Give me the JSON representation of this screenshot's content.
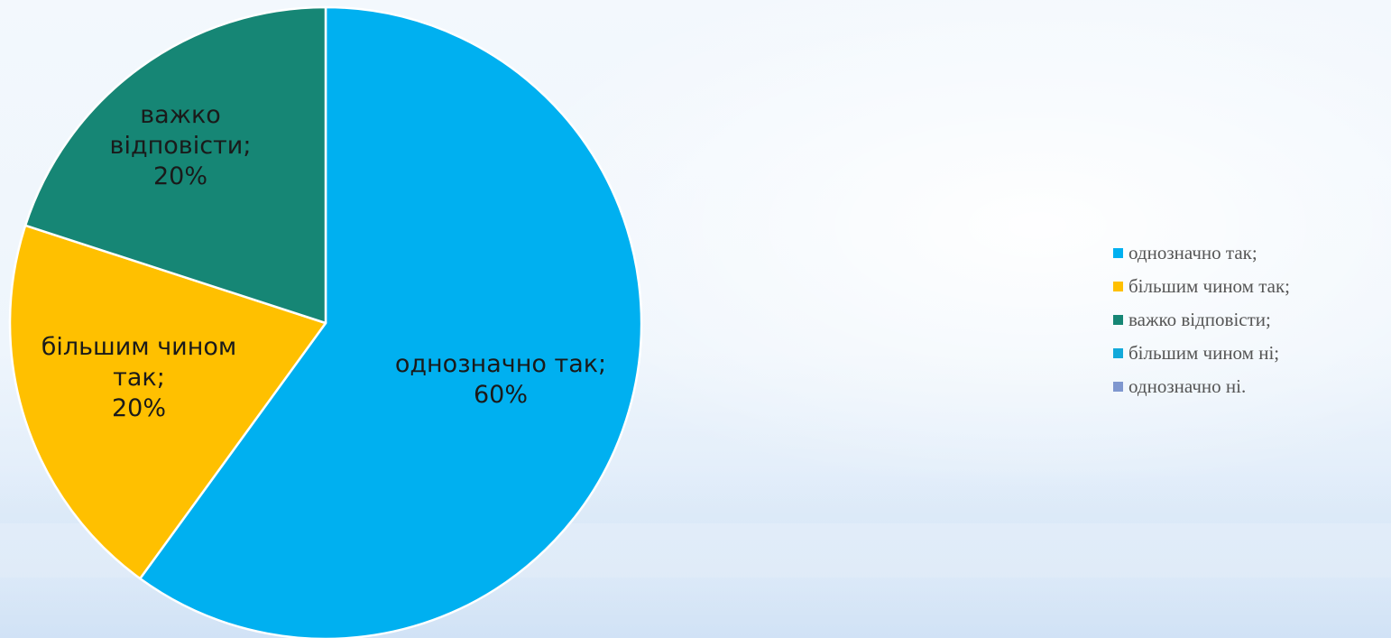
{
  "chart_data": {
    "type": "pie",
    "title": "",
    "legend_position": "right",
    "slices": [
      {
        "label": "однозначно так;",
        "value": 60,
        "value_label": "60%",
        "data_label_lines": [
          "однозначно так;",
          "60%"
        ],
        "color": "#00B0F0"
      },
      {
        "label": "більшим чином так;",
        "value": 20,
        "value_label": "20%",
        "data_label_lines": [
          "більшим чином",
          "так;",
          "20%"
        ],
        "color": "#FFC000"
      },
      {
        "label": "важко відповісти;",
        "value": 20,
        "value_label": "20%",
        "data_label_lines": [
          "важко",
          "відповісти;",
          "20%"
        ],
        "color": "#168675"
      },
      {
        "label": "більшим чином ні;",
        "value": 0,
        "value_label": "0%",
        "data_label_lines": [],
        "color": "#13A9DA"
      },
      {
        "label": "однозначно ні.",
        "value": 0,
        "value_label": "0%",
        "data_label_lines": [],
        "color": "#7F97CF"
      }
    ]
  },
  "legend": {
    "items": [
      {
        "label": "однозначно так;",
        "color": "#00B0F0"
      },
      {
        "label": "більшим чином так;",
        "color": "#FFC000"
      },
      {
        "label": "важко відповісти;",
        "color": "#168675"
      },
      {
        "label": "більшим чином ні;",
        "color": "#13A9DA"
      },
      {
        "label": "однозначно ні.",
        "color": "#7F97CF"
      }
    ]
  }
}
